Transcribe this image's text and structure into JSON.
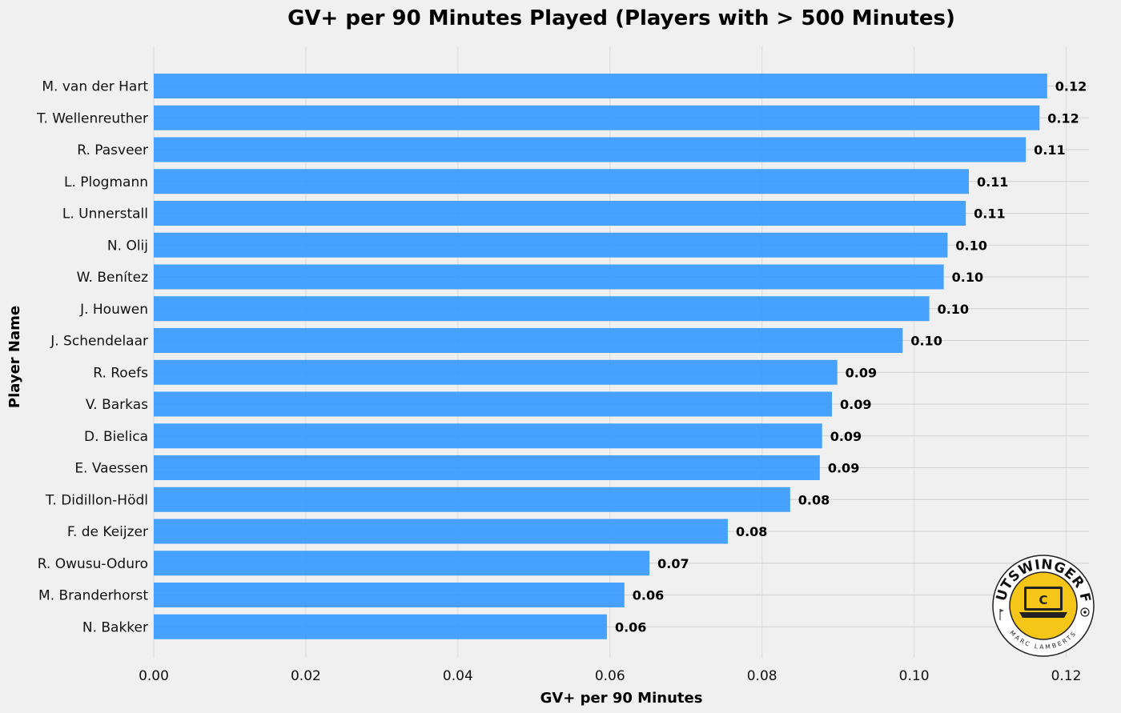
{
  "chart_data": {
    "type": "bar",
    "orientation": "horizontal",
    "title": "GV+ per 90 Minutes Played (Players with > 500 Minutes)",
    "xlabel": "GV+ per 90 Minutes",
    "ylabel": "Player Name",
    "xlim": [
      0,
      0.123
    ],
    "xticks": [
      0.0,
      0.02,
      0.04,
      0.06,
      0.08,
      0.1,
      0.12
    ],
    "xtick_labels": [
      "0.00",
      "0.02",
      "0.04",
      "0.06",
      "0.08",
      "0.10",
      "0.12"
    ],
    "grid": true,
    "bar_color": "#3399ff",
    "categories": [
      "M. van der Hart",
      "T. Wellenreuther",
      "R. Pasveer",
      "L. Plogmann",
      "L. Unnerstall",
      "N. Olij",
      "W. Benítez",
      "J. Houwen",
      "J. Schendelaar",
      "R. Roefs",
      "V. Barkas",
      "D. Bielica",
      "E. Vaessen",
      "T. Didillon-Hödl",
      "F. de Keijzer",
      "R. Owusu-Oduro",
      "M. Branderhorst",
      "N. Bakker"
    ],
    "values": [
      0.1175,
      0.1165,
      0.1147,
      0.1072,
      0.1068,
      0.1044,
      0.1039,
      0.102,
      0.0985,
      0.0899,
      0.0892,
      0.0879,
      0.0876,
      0.0837,
      0.0755,
      0.0652,
      0.0619,
      0.0596
    ],
    "value_labels": [
      "0.12",
      "0.12",
      "0.11",
      "0.11",
      "0.11",
      "0.10",
      "0.10",
      "0.10",
      "0.10",
      "0.09",
      "0.09",
      "0.09",
      "0.09",
      "0.08",
      "0.08",
      "0.07",
      "0.06",
      "0.06"
    ]
  },
  "logo": {
    "name": "OUTSWINGER FC",
    "subtitle": "MARC LAMBERTS",
    "icon": "laptop-icon",
    "color": "#f5c518"
  }
}
